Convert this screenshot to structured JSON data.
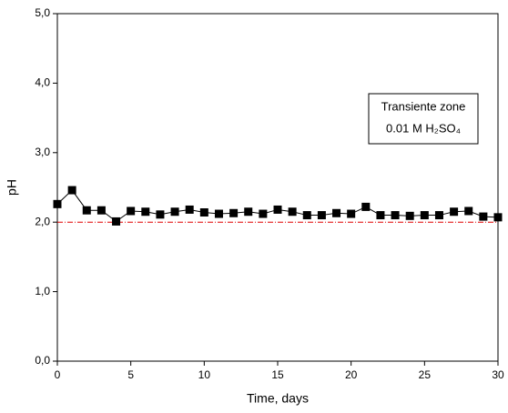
{
  "chart_data": {
    "type": "line",
    "x_label": "Time, days",
    "y_label": "pH",
    "annotation": [
      "Transiente zone",
      "0.01 M H₂SO₄"
    ],
    "x": [
      0,
      1,
      2,
      3,
      4,
      5,
      6,
      7,
      8,
      9,
      10,
      11,
      12,
      13,
      14,
      15,
      16,
      17,
      18,
      19,
      20,
      21,
      22,
      23,
      24,
      25,
      26,
      27,
      28,
      29,
      30
    ],
    "series": [
      {
        "color": "#000000",
        "values": [
          2.26,
          2.46,
          2.17,
          2.17,
          2.01,
          2.16,
          2.15,
          2.11,
          2.15,
          2.18,
          2.14,
          2.12,
          2.13,
          2.15,
          2.12,
          2.18,
          2.15,
          2.1,
          2.1,
          2.13,
          2.12,
          2.22,
          2.1,
          2.1,
          2.09,
          2.1,
          2.1,
          2.15,
          2.16,
          2.08,
          2.07
        ]
      }
    ],
    "reference_line": {
      "value": 2,
      "color": "#e00000"
    },
    "xlim": [
      0,
      30
    ],
    "xticks": [
      0,
      5,
      10,
      15,
      20,
      25,
      30
    ],
    "ylim": [
      0,
      5
    ],
    "yticks": [
      {
        "value": 0,
        "label": "0,0"
      },
      {
        "value": 1,
        "label": "1,0"
      },
      {
        "value": 2,
        "label": "2,0"
      },
      {
        "value": 3,
        "label": "3,0"
      },
      {
        "value": 4,
        "label": "4,0"
      },
      {
        "value": 5,
        "label": "5,0"
      }
    ]
  }
}
